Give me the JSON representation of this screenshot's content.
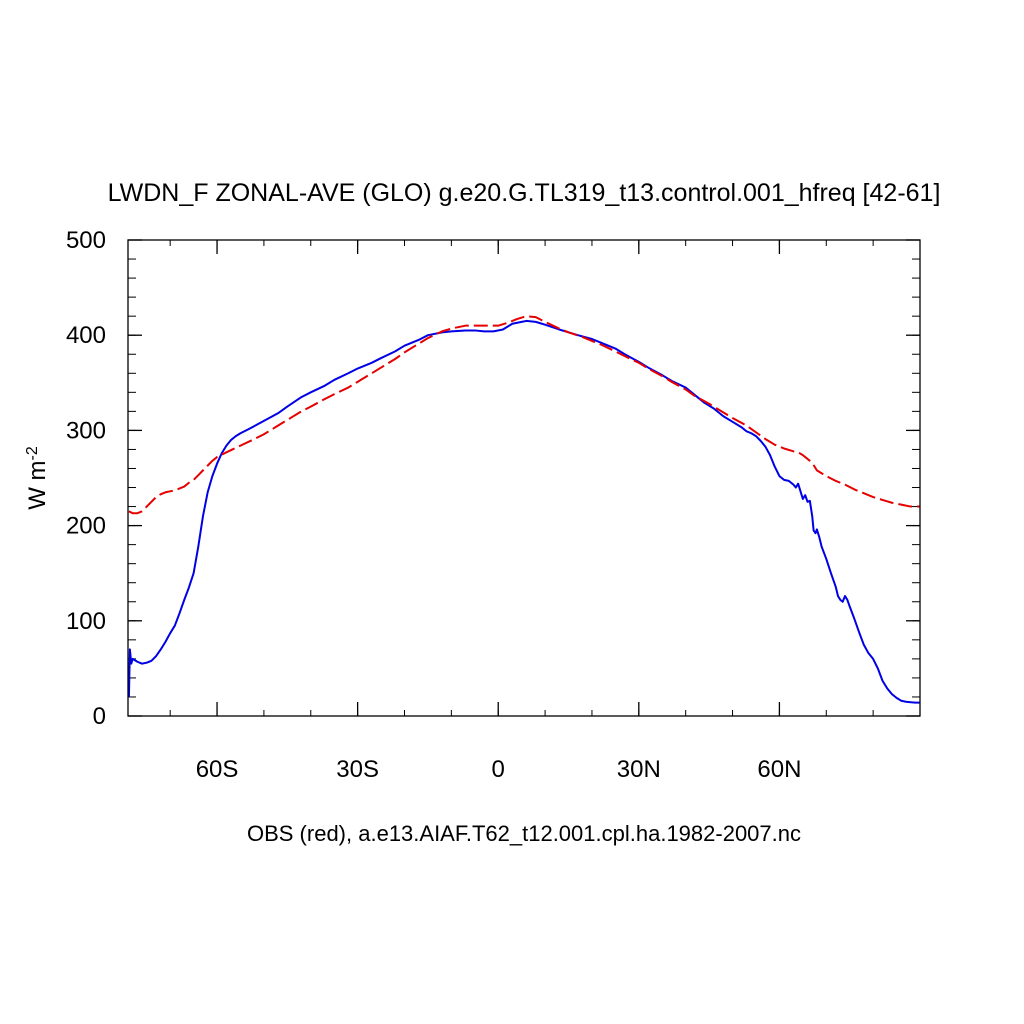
{
  "chart_data": {
    "type": "line",
    "title": "LWDN_F ZONAL-AVE (GLO) g.e20.G.TL319_t13.control.001_hfreq [42-61]",
    "subtitle": "OBS (red), a.e13.AIAF.T62_t12.001.cpl.ha.1982-2007.nc",
    "ylabel_main": "W m",
    "ylabel_sup": "-2",
    "xlim": [
      -79,
      90
    ],
    "ylim": [
      0,
      500
    ],
    "grid": false,
    "x_ticks": [
      {
        "value": -60,
        "label": "60S"
      },
      {
        "value": -30,
        "label": "30S"
      },
      {
        "value": 0,
        "label": "0"
      },
      {
        "value": 30,
        "label": "30N"
      },
      {
        "value": 60,
        "label": "60N"
      }
    ],
    "y_ticks": [
      {
        "value": 0,
        "label": "0"
      },
      {
        "value": 100,
        "label": "100"
      },
      {
        "value": 200,
        "label": "200"
      },
      {
        "value": 300,
        "label": "300"
      },
      {
        "value": 400,
        "label": "400"
      },
      {
        "value": 500,
        "label": "500"
      }
    ],
    "series": [
      {
        "color": "#0000e6",
        "dash": "solid",
        "points": [
          [
            -78.8,
            20
          ],
          [
            -78.6,
            70
          ],
          [
            -78.3,
            55
          ],
          [
            -78,
            60
          ],
          [
            -77,
            57
          ],
          [
            -76,
            55
          ],
          [
            -75,
            56
          ],
          [
            -74,
            58
          ],
          [
            -73,
            63
          ],
          [
            -72,
            70
          ],
          [
            -71,
            78
          ],
          [
            -70,
            87
          ],
          [
            -69,
            95
          ],
          [
            -68,
            108
          ],
          [
            -67,
            122
          ],
          [
            -66,
            135
          ],
          [
            -65,
            150
          ],
          [
            -64,
            178
          ],
          [
            -63,
            210
          ],
          [
            -62,
            235
          ],
          [
            -61,
            252
          ],
          [
            -60,
            265
          ],
          [
            -59,
            276
          ],
          [
            -58,
            284
          ],
          [
            -57,
            290
          ],
          [
            -56,
            294
          ],
          [
            -55,
            297
          ],
          [
            -53,
            302
          ],
          [
            -50,
            310
          ],
          [
            -47,
            318
          ],
          [
            -45,
            325
          ],
          [
            -42,
            335
          ],
          [
            -40,
            340
          ],
          [
            -37,
            347
          ],
          [
            -35,
            353
          ],
          [
            -32,
            360
          ],
          [
            -30,
            365
          ],
          [
            -27,
            371
          ],
          [
            -25,
            376
          ],
          [
            -22,
            383
          ],
          [
            -20,
            389
          ],
          [
            -17,
            395
          ],
          [
            -15,
            400
          ],
          [
            -12,
            403
          ],
          [
            -10,
            404
          ],
          [
            -7,
            405
          ],
          [
            -5,
            405
          ],
          [
            -3,
            404
          ],
          [
            -1,
            404
          ],
          [
            1,
            406
          ],
          [
            2,
            409
          ],
          [
            3,
            412
          ],
          [
            5,
            414
          ],
          [
            6,
            415
          ],
          [
            8,
            414
          ],
          [
            10,
            411
          ],
          [
            13,
            406
          ],
          [
            15,
            403
          ],
          [
            17,
            400
          ],
          [
            20,
            396
          ],
          [
            22,
            392
          ],
          [
            25,
            386
          ],
          [
            27,
            380
          ],
          [
            30,
            372
          ],
          [
            32,
            366
          ],
          [
            35,
            358
          ],
          [
            37,
            352
          ],
          [
            40,
            345
          ],
          [
            42,
            337
          ],
          [
            44,
            329
          ],
          [
            46,
            323
          ],
          [
            48,
            315
          ],
          [
            50,
            309
          ],
          [
            52,
            303
          ],
          [
            53,
            299
          ],
          [
            54,
            297
          ],
          [
            55,
            294
          ],
          [
            56,
            289
          ],
          [
            57,
            283
          ],
          [
            58,
            274
          ],
          [
            59,
            262
          ],
          [
            60,
            252
          ],
          [
            61,
            248
          ],
          [
            62,
            247
          ],
          [
            63,
            243
          ],
          [
            63.5,
            240
          ],
          [
            64,
            244
          ],
          [
            64.5,
            236
          ],
          [
            65,
            228
          ],
          [
            65.5,
            232
          ],
          [
            66,
            225
          ],
          [
            66.5,
            226
          ],
          [
            67,
            210
          ],
          [
            67.3,
            195
          ],
          [
            67.7,
            192
          ],
          [
            68,
            196
          ],
          [
            68.5,
            188
          ],
          [
            69,
            178
          ],
          [
            70,
            165
          ],
          [
            71,
            150
          ],
          [
            72,
            136
          ],
          [
            72.5,
            126
          ],
          [
            73,
            122
          ],
          [
            73.5,
            120
          ],
          [
            74,
            126
          ],
          [
            74.5,
            122
          ],
          [
            75,
            115
          ],
          [
            76,
            102
          ],
          [
            77,
            88
          ],
          [
            78,
            75
          ],
          [
            79,
            66
          ],
          [
            80,
            60
          ],
          [
            81,
            50
          ],
          [
            82,
            37
          ],
          [
            83,
            29
          ],
          [
            84,
            23
          ],
          [
            85,
            19
          ],
          [
            86,
            16
          ],
          [
            87,
            15
          ],
          [
            88,
            14.5
          ],
          [
            89,
            14
          ],
          [
            90,
            14
          ]
        ]
      },
      {
        "color": "#e60000",
        "dash": "dashed",
        "points": [
          [
            -78.8,
            215
          ],
          [
            -78,
            213
          ],
          [
            -77,
            213
          ],
          [
            -76,
            215
          ],
          [
            -75,
            220
          ],
          [
            -74,
            225
          ],
          [
            -73,
            230
          ],
          [
            -72,
            233
          ],
          [
            -71,
            235
          ],
          [
            -70,
            236
          ],
          [
            -69,
            237
          ],
          [
            -68,
            239
          ],
          [
            -67,
            241
          ],
          [
            -66,
            245
          ],
          [
            -65,
            248
          ],
          [
            -64,
            253
          ],
          [
            -63,
            258
          ],
          [
            -62,
            263
          ],
          [
            -61,
            268
          ],
          [
            -60,
            272
          ],
          [
            -58,
            277
          ],
          [
            -55,
            284
          ],
          [
            -52,
            291
          ],
          [
            -50,
            296
          ],
          [
            -47,
            305
          ],
          [
            -45,
            311
          ],
          [
            -42,
            320
          ],
          [
            -40,
            325
          ],
          [
            -37,
            333
          ],
          [
            -35,
            338
          ],
          [
            -32,
            345
          ],
          [
            -30,
            351
          ],
          [
            -27,
            360
          ],
          [
            -25,
            366
          ],
          [
            -22,
            375
          ],
          [
            -20,
            382
          ],
          [
            -17,
            391
          ],
          [
            -15,
            397
          ],
          [
            -12,
            404
          ],
          [
            -10,
            407
          ],
          [
            -7,
            410
          ],
          [
            -5,
            410
          ],
          [
            -2,
            410
          ],
          [
            0,
            410
          ],
          [
            2,
            413
          ],
          [
            4,
            417
          ],
          [
            6,
            420
          ],
          [
            8,
            419
          ],
          [
            10,
            414
          ],
          [
            13,
            407
          ],
          [
            15,
            403
          ],
          [
            18,
            398
          ],
          [
            20,
            394
          ],
          [
            22,
            390
          ],
          [
            25,
            383
          ],
          [
            27,
            378
          ],
          [
            30,
            371
          ],
          [
            32,
            365
          ],
          [
            35,
            357
          ],
          [
            37,
            351
          ],
          [
            40,
            343
          ],
          [
            42,
            336
          ],
          [
            45,
            328
          ],
          [
            47,
            322
          ],
          [
            50,
            313
          ],
          [
            53,
            305
          ],
          [
            55,
            298
          ],
          [
            57,
            291
          ],
          [
            59,
            285
          ],
          [
            61,
            281
          ],
          [
            63,
            278
          ],
          [
            64,
            277
          ],
          [
            65,
            274
          ],
          [
            66,
            270
          ],
          [
            67,
            266
          ],
          [
            68,
            258
          ],
          [
            69,
            255
          ],
          [
            70,
            252
          ],
          [
            72,
            247
          ],
          [
            74,
            243
          ],
          [
            76,
            238
          ],
          [
            78,
            234
          ],
          [
            80,
            230
          ],
          [
            82,
            227
          ],
          [
            84,
            224
          ],
          [
            86,
            222
          ],
          [
            88,
            220
          ],
          [
            90,
            220
          ]
        ]
      }
    ]
  }
}
